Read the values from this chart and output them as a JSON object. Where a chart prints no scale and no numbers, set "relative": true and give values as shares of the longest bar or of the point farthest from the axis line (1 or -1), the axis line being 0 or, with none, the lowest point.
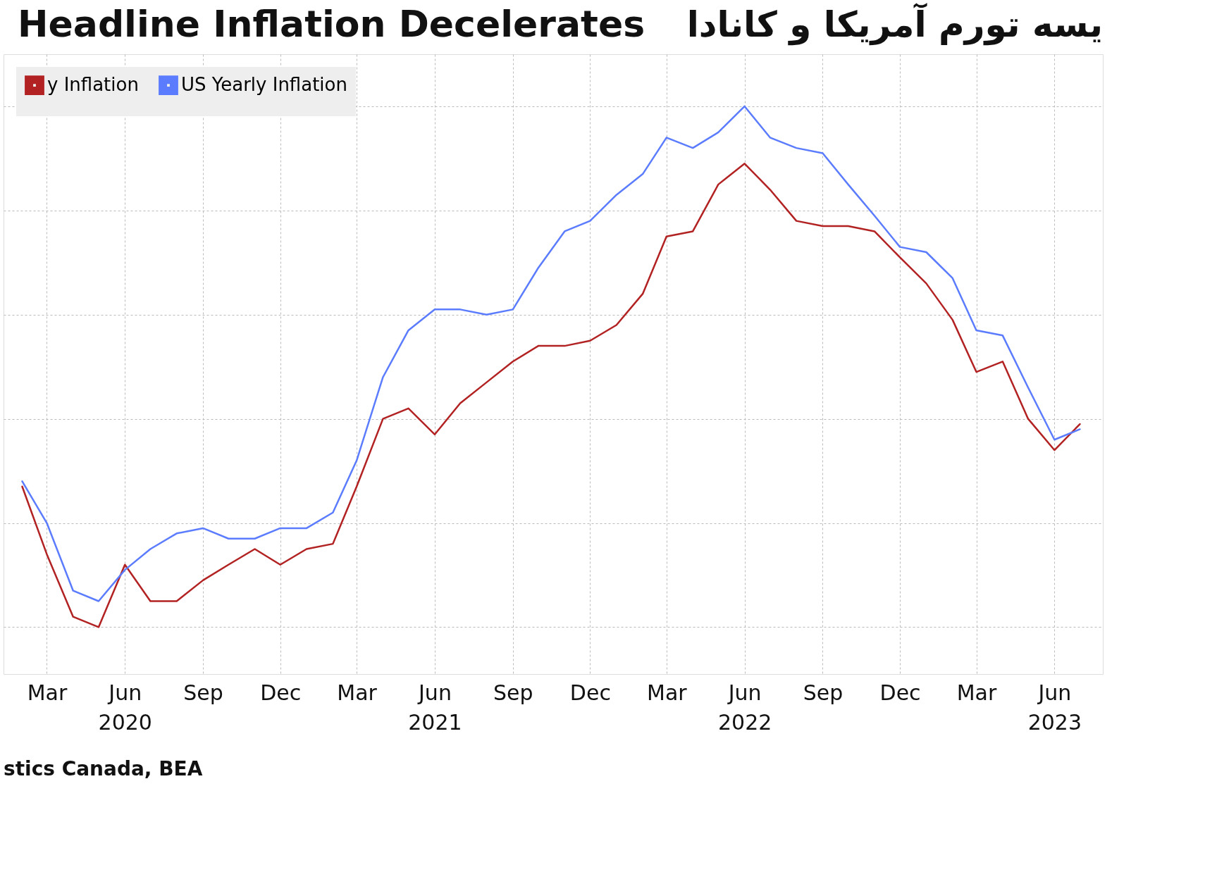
{
  "chart_data": {
    "type": "line",
    "title": "Headline Inflation Decelerates",
    "subtitle": "یسه تورم آمریکا و کانادا",
    "relative": true,
    "grid": true,
    "legend": "top left",
    "line_style": "solid",
    "marker": "none",
    "x": [
      "2020-02",
      "2020-03",
      "2020-04",
      "2020-05",
      "2020-06",
      "2020-07",
      "2020-08",
      "2020-09",
      "2020-10",
      "2020-11",
      "2020-12",
      "2021-01",
      "2021-02",
      "2021-03",
      "2021-04",
      "2021-05",
      "2021-06",
      "2021-07",
      "2021-08",
      "2021-09",
      "2021-10",
      "2021-11",
      "2021-12",
      "2022-01",
      "2022-02",
      "2022-03",
      "2022-04",
      "2022-05",
      "2022-06",
      "2022-07",
      "2022-08",
      "2022-09",
      "2022-10",
      "2022-11",
      "2022-12",
      "2023-01",
      "2023-02",
      "2023-03",
      "2023-04",
      "2023-05",
      "2023-06",
      "2023-07"
    ],
    "xlim": [
      "2020-01-10",
      "2023-07-28"
    ],
    "xticks": [
      {
        "value": "2020-03",
        "label": "Mar"
      },
      {
        "value": "2020-06",
        "label": "Jun\n2020"
      },
      {
        "value": "2020-09",
        "label": "Sep"
      },
      {
        "value": "2020-12",
        "label": "Dec"
      },
      {
        "value": "2021-03",
        "label": "Mar"
      },
      {
        "value": "2021-06",
        "label": "Jun\n2021"
      },
      {
        "value": "2021-09",
        "label": "Sep"
      },
      {
        "value": "2021-12",
        "label": "Dec"
      },
      {
        "value": "2022-03",
        "label": "Mar"
      },
      {
        "value": "2022-06",
        "label": "Jun\n2022"
      },
      {
        "value": "2022-09",
        "label": "Sep"
      },
      {
        "value": "2022-12",
        "label": "Dec"
      },
      {
        "value": "2023-03",
        "label": "Mar"
      },
      {
        "value": "2023-06",
        "label": "Jun\n2023"
      }
    ],
    "series": [
      {
        "name": "y Inflation",
        "color": "#b22222",
        "values": [
          0.27,
          0.14,
          0.02,
          0,
          0.12,
          0.05,
          0.05,
          0.09,
          0.12,
          0.15,
          0.12,
          0.15,
          0.16,
          0.27,
          0.4,
          0.42,
          0.37,
          0.43,
          0.47,
          0.51,
          0.54,
          0.54,
          0.55,
          0.58,
          0.64,
          0.75,
          0.76,
          0.85,
          0.89,
          0.84,
          0.78,
          0.77,
          0.77,
          0.76,
          0.71,
          0.66,
          0.59,
          0.49,
          0.51,
          0.4,
          0.34,
          0.39
        ]
      },
      {
        "name": "US Yearly Inflation",
        "color": "#5b7cff",
        "values": [
          0.28,
          0.2,
          0.07,
          0.05,
          0.11,
          0.15,
          0.18,
          0.19,
          0.17,
          0.17,
          0.19,
          0.19,
          0.22,
          0.32,
          0.48,
          0.57,
          0.61,
          0.61,
          0.6,
          0.61,
          0.69,
          0.76,
          0.78,
          0.83,
          0.87,
          0.94,
          0.92,
          0.95,
          1.0,
          0.94,
          0.92,
          0.91,
          0.85,
          0.79,
          0.73,
          0.72,
          0.67,
          0.57,
          0.56,
          0.46,
          0.36,
          0.38
        ]
      }
    ],
    "annotations": [
      "stics Canada, BEA"
    ]
  }
}
